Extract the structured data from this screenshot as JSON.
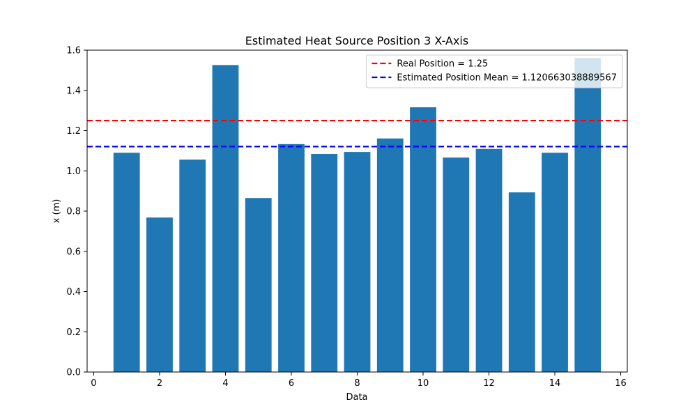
{
  "chart_data": {
    "type": "bar",
    "title": "Estimated Heat Source Position 3 X-Axis",
    "xlabel": "Data",
    "ylabel": "x (m)",
    "xlim": [
      -0.2,
      16.2
    ],
    "ylim": [
      0,
      1.6
    ],
    "grid": false,
    "legend_position": "top-right",
    "bar_color": "#1f77b4",
    "x": [
      1,
      2,
      3,
      4,
      5,
      6,
      7,
      8,
      9,
      10,
      11,
      12,
      13,
      14,
      15
    ],
    "values": [
      1.09,
      0.768,
      1.056,
      1.526,
      0.865,
      1.133,
      1.084,
      1.094,
      1.161,
      1.316,
      1.066,
      1.109,
      0.893,
      1.09,
      1.561
    ],
    "xticks": [
      "0",
      "2",
      "4",
      "6",
      "8",
      "10",
      "12",
      "14",
      "16"
    ],
    "xtick_values": [
      0,
      2,
      4,
      6,
      8,
      10,
      12,
      14,
      16
    ],
    "yticks": [
      "0.0",
      "0.2",
      "0.4",
      "0.6",
      "0.8",
      "1.0",
      "1.2",
      "1.4",
      "1.6"
    ],
    "ytick_values": [
      0,
      0.2,
      0.4,
      0.6,
      0.8,
      1.0,
      1.2,
      1.4,
      1.6
    ],
    "hlines": [
      {
        "label": "Real Position = 1.25",
        "value": 1.25,
        "color": "#ff0000",
        "style": "dashed"
      },
      {
        "label": "Estimated Position Mean = 1.120663038889567",
        "value": 1.120663038889567,
        "color": "#0000ff",
        "style": "dashed"
      }
    ]
  }
}
